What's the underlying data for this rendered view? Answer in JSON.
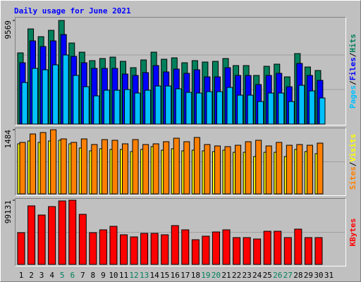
{
  "chart_data": [
    {
      "type": "bar",
      "title": "Daily usage for June 2021",
      "legend_separator": "/",
      "ylim": [
        0,
        9569
      ],
      "yticks": [
        9569
      ],
      "series": [
        {
          "name": "Pages",
          "color": "#00c0ff",
          "values": [
            3841,
            5143,
            5013,
            5468,
            6380,
            4492,
            3450,
            2604,
            3125,
            3125,
            3190,
            2864,
            3125,
            3515,
            3515,
            3255,
            2930,
            2864,
            2995,
            2995,
            3385,
            2669,
            2669,
            2083,
            2864,
            2864,
            2083,
            3580,
            3060,
            2409,
            null
          ]
        },
        {
          "name": "Files",
          "color": "#0000ff",
          "values": [
            5664,
            7682,
            7161,
            7682,
            8268,
            6250,
            5664,
            5143,
            5143,
            5143,
            4622,
            4492,
            4752,
            5403,
            4817,
            5078,
            4687,
            5013,
            4362,
            4362,
            5208,
            4492,
            4492,
            3646,
            4492,
            4687,
            3450,
            5599,
            4492,
            4036,
            null
          ]
        },
        {
          "name": "Hits",
          "color": "#00805c",
          "values": [
            6575,
            8789,
            8072,
            8658,
            9569,
            7487,
            6640,
            5859,
            6054,
            6184,
            5794,
            5208,
            5924,
            6640,
            5989,
            6119,
            5664,
            5859,
            5729,
            5794,
            6054,
            5403,
            5403,
            4492,
            5338,
            5534,
            4362,
            6510,
            5273,
            4948,
            null
          ]
        }
      ]
    },
    {
      "type": "bar",
      "legend_separator": "/",
      "ylim": [
        0,
        1484
      ],
      "yticks": [
        1484
      ],
      "series": [
        {
          "name": "Sites",
          "color": "#ff8000",
          "values": [
            1191,
            1386,
            1419,
            1484,
            1272,
            1191,
            1272,
            1142,
            1256,
            1240,
            1158,
            1256,
            1142,
            1158,
            1207,
            1288,
            1207,
            1305,
            1142,
            1109,
            1093,
            1125,
            1207,
            1240,
            1109,
            1191,
            1125,
            1142,
            1125,
            1174,
            null
          ]
        },
        {
          "name": "Visits",
          "color": "#ffff00",
          "values": [
            1158,
            1223,
            1191,
            1223,
            1240,
            1158,
            1060,
            995,
            1044,
            1028,
            1028,
            979,
            1028,
            1093,
            1011,
            1044,
            995,
            1011,
            995,
            979,
            1011,
            962,
            962,
            864,
            962,
            962,
            864,
            1028,
            979,
            930,
            null
          ]
        }
      ]
    },
    {
      "type": "bar",
      "ylim": [
        0,
        99131
      ],
      "yticks": [
        99131
      ],
      "categories": [
        1,
        2,
        3,
        4,
        5,
        6,
        7,
        8,
        9,
        10,
        11,
        12,
        13,
        14,
        15,
        16,
        17,
        18,
        19,
        20,
        21,
        22,
        23,
        24,
        25,
        26,
        27,
        28,
        29,
        30,
        31
      ],
      "category_colors": [
        "#000000",
        "#000000",
        "#000000",
        "#000000",
        "#00805c",
        "#00805c",
        "#000000",
        "#000000",
        "#000000",
        "#000000",
        "#000000",
        "#00805c",
        "#00805c",
        "#000000",
        "#000000",
        "#000000",
        "#000000",
        "#000000",
        "#00805c",
        "#00805c",
        "#000000",
        "#000000",
        "#000000",
        "#000000",
        "#000000",
        "#00805c",
        "#00805c",
        "#000000",
        "#000000",
        "#000000",
        "#000000"
      ],
      "series": [
        {
          "name": "KBytes",
          "color": "#ff0000",
          "values": [
            49023,
            90420,
            76258,
            89331,
            98046,
            99131,
            77347,
            49023,
            53381,
            58828,
            45755,
            42487,
            47934,
            47934,
            45755,
            59917,
            53381,
            38129,
            43576,
            50112,
            53381,
            41397,
            41397,
            39218,
            51202,
            51202,
            41397,
            54470,
            41397,
            41397,
            null
          ]
        }
      ]
    }
  ]
}
